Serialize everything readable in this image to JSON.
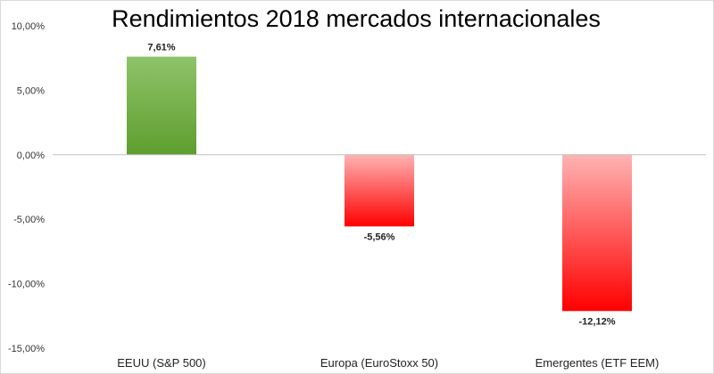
{
  "chart_data": {
    "type": "bar",
    "title": "Rendimientos 2018 mercados internacionales",
    "categories": [
      "EEUU (S&P 500)",
      "Europa (EuroStoxx 50)",
      "Emergentes (ETF EEM)"
    ],
    "values": [
      7.61,
      -5.56,
      -12.12
    ],
    "data_labels": [
      "7,61%",
      "-5,56%",
      "-12,12%"
    ],
    "ylim": [
      -15,
      10
    ],
    "yticks": [
      10,
      5,
      0,
      -5,
      -10,
      -15
    ],
    "ytick_labels": [
      "10,00%",
      "5,00%",
      "0,00%",
      "-5,00%",
      "-10,00%",
      "-15,00%"
    ],
    "xlabel": "",
    "ylabel": "",
    "grid": false,
    "legend": "none",
    "colors": {
      "positive_top": "#8fc36a",
      "positive_bottom": "#5e9e2e",
      "negative_top": "#ffb3b3",
      "negative_bottom": "#ff0000",
      "axis": "#bfbfbf"
    }
  }
}
